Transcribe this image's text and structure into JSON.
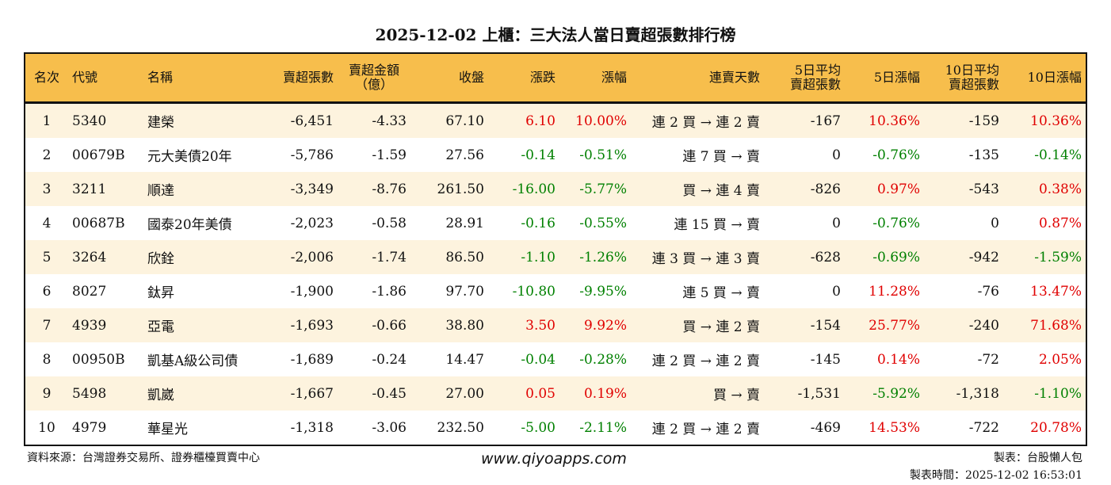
{
  "title": "2025-12-02 上櫃：三大法人當日賣超張數排行榜",
  "colors": {
    "header_bg": "#F7BE4C",
    "row_alt_bg": "#FDF3DE",
    "up": "#E00000",
    "down": "#008000"
  },
  "headers": [
    "名次",
    "代號",
    "名稱",
    "賣超張數",
    "賣超金額\n（億）",
    "收盤",
    "漲跌",
    "漲幅",
    "連賣天數",
    "5日平均\n賣超張數",
    "5日漲幅",
    "10日平均\n賣超張數",
    "10日漲幅"
  ],
  "rows": [
    [
      "1",
      "5340",
      "建榮",
      "-6,451",
      "-4.33",
      "67.10",
      "6.10",
      "10.00%",
      "連 2 買 → 連 2 賣",
      "-167",
      "10.36%",
      "-159",
      "10.36%"
    ],
    [
      "2",
      "00679B",
      "元大美債20年",
      "-5,786",
      "-1.59",
      "27.56",
      "-0.14",
      "-0.51%",
      "連 7 買 → 賣",
      "0",
      "-0.76%",
      "-135",
      "-0.14%"
    ],
    [
      "3",
      "3211",
      "順達",
      "-3,349",
      "-8.76",
      "261.50",
      "-16.00",
      "-5.77%",
      "買 → 連 4 賣",
      "-826",
      "0.97%",
      "-543",
      "0.38%"
    ],
    [
      "4",
      "00687B",
      "國泰20年美債",
      "-2,023",
      "-0.58",
      "28.91",
      "-0.16",
      "-0.55%",
      "連 15 買 → 賣",
      "0",
      "-0.76%",
      "0",
      "0.87%"
    ],
    [
      "5",
      "3264",
      "欣銓",
      "-2,006",
      "-1.74",
      "86.50",
      "-1.10",
      "-1.26%",
      "連 3 買 → 連 3 賣",
      "-628",
      "-0.69%",
      "-942",
      "-1.59%"
    ],
    [
      "6",
      "8027",
      "鈦昇",
      "-1,900",
      "-1.86",
      "97.70",
      "-10.80",
      "-9.95%",
      "連 5 買 → 賣",
      "0",
      "11.28%",
      "-76",
      "13.47%"
    ],
    [
      "7",
      "4939",
      "亞電",
      "-1,693",
      "-0.66",
      "38.80",
      "3.50",
      "9.92%",
      "買 → 連 2 賣",
      "-154",
      "25.77%",
      "-240",
      "71.68%"
    ],
    [
      "8",
      "00950B",
      "凱基A級公司債",
      "-1,689",
      "-0.24",
      "14.47",
      "-0.04",
      "-0.28%",
      "連 2 買 → 連 2 賣",
      "-145",
      "0.14%",
      "-72",
      "2.05%"
    ],
    [
      "9",
      "5498",
      "凱崴",
      "-1,667",
      "-0.45",
      "27.00",
      "0.05",
      "0.19%",
      "買 → 賣",
      "-1,531",
      "-5.92%",
      "-1,318",
      "-1.10%"
    ],
    [
      "10",
      "4979",
      "華星光",
      "-1,318",
      "-3.06",
      "232.50",
      "-5.00",
      "-2.11%",
      "連 2 買 → 連 2 賣",
      "-469",
      "14.53%",
      "-722",
      "20.78%"
    ]
  ],
  "footer": {
    "source": "資料來源：台灣證券交易所、證券櫃檯買賣中心",
    "site": "www.qiyoapps.com",
    "maker": "製表：台股懶人包",
    "time": "製表時間：2025-12-02 16:53:01"
  }
}
